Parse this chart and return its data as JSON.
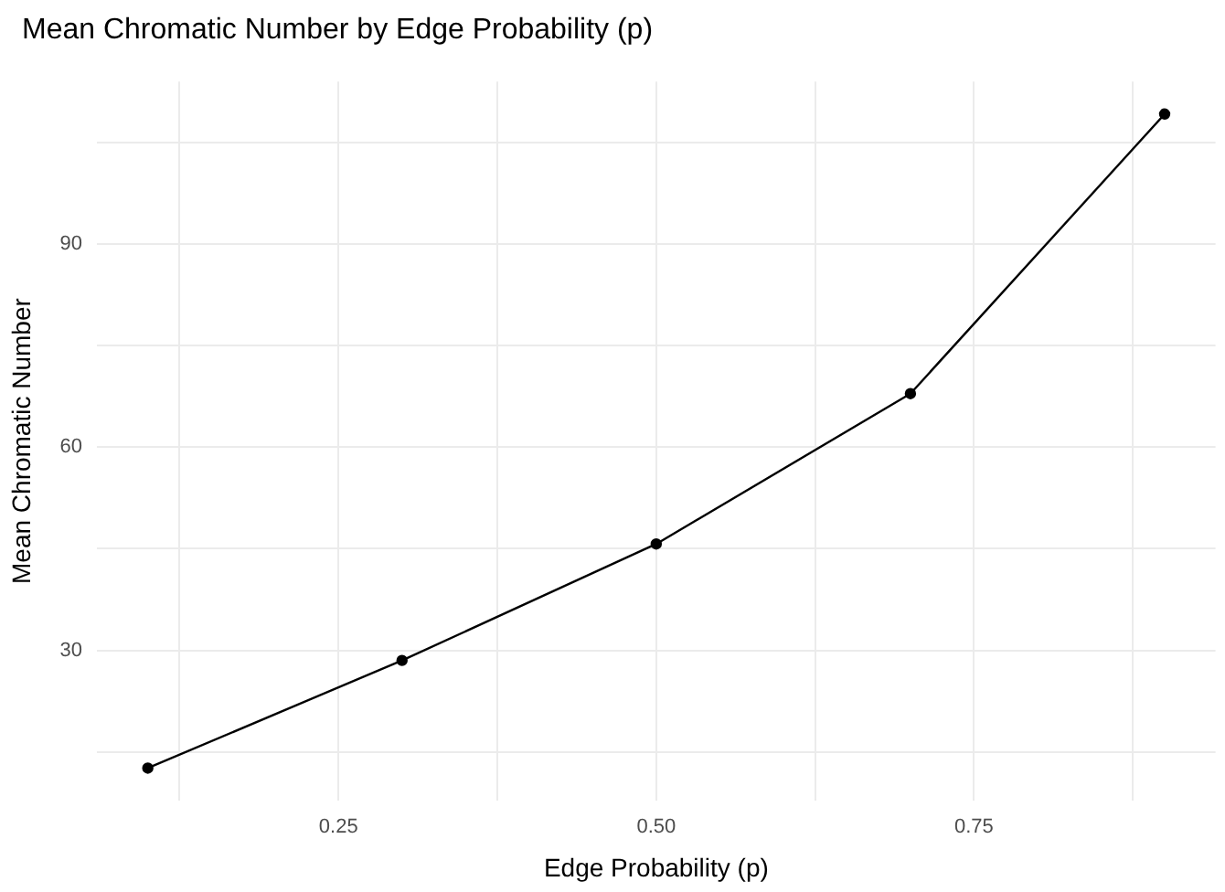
{
  "chart_data": {
    "type": "line",
    "title": "Mean Chromatic Number by Edge Probability (p)",
    "xlabel": "Edge Probability (p)",
    "ylabel": "Mean Chromatic Number",
    "x": [
      0.1,
      0.3,
      0.5,
      0.7,
      0.9
    ],
    "series": [
      {
        "color": "#000000",
        "values": [
          12.6,
          28.5,
          45.7,
          67.9,
          109.2
        ]
      }
    ],
    "xlim": [
      0.06,
      0.94
    ],
    "ylim": [
      7.8,
      114
    ],
    "xticks": [
      {
        "value": 0.125,
        "label": null
      },
      {
        "value": 0.25,
        "label": "0.25"
      },
      {
        "value": 0.375,
        "label": null
      },
      {
        "value": 0.5,
        "label": "0.50"
      },
      {
        "value": 0.625,
        "label": null
      },
      {
        "value": 0.75,
        "label": "0.75"
      },
      {
        "value": 0.875,
        "label": null
      }
    ],
    "yticks": [
      {
        "value": 15,
        "label": null
      },
      30,
      {
        "value": 45,
        "label": null
      },
      60,
      {
        "value": 75,
        "label": null
      },
      90,
      {
        "value": 105,
        "label": null
      }
    ],
    "grid": true,
    "legend": false,
    "marker": "circle",
    "line_style": "solid"
  }
}
